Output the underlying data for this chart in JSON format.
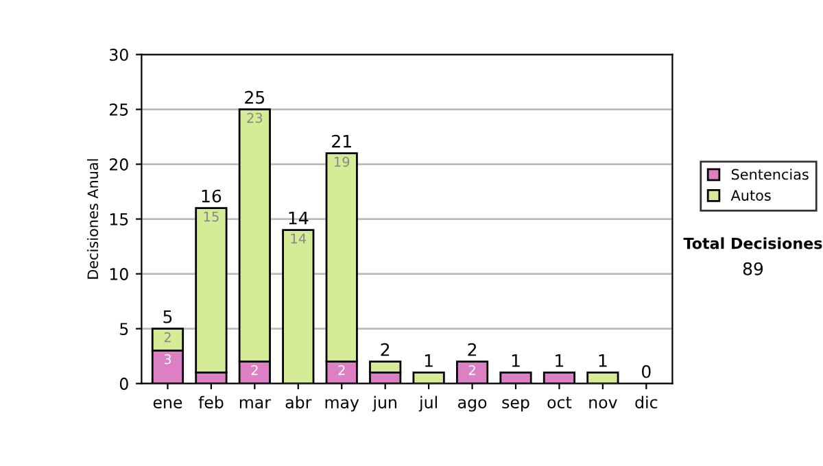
{
  "chart_data": {
    "type": "bar",
    "stacked": true,
    "ylabel": "Decisiones Anual",
    "categories": [
      "ene",
      "feb",
      "mar",
      "abr",
      "may",
      "jun",
      "jul",
      "ago",
      "sep",
      "oct",
      "nov",
      "dic"
    ],
    "series": [
      {
        "name": "Sentencias",
        "color": "#dd7fc4",
        "values": [
          3,
          1,
          2,
          0,
          2,
          1,
          0,
          2,
          1,
          1,
          0,
          0
        ],
        "value_labels": [
          "3",
          null,
          "2",
          null,
          "2",
          null,
          null,
          "2",
          null,
          null,
          null,
          null
        ]
      },
      {
        "name": "Autos",
        "color": "#d6eb96",
        "values": [
          2,
          15,
          23,
          14,
          19,
          1,
          1,
          0,
          0,
          0,
          1,
          0
        ],
        "value_labels": [
          "2",
          "15",
          "23",
          "14",
          "19",
          null,
          null,
          null,
          null,
          null,
          null,
          null
        ]
      }
    ],
    "totals": [
      "5",
      "16",
      "25",
      "14",
      "21",
      "2",
      "1",
      "2",
      "1",
      "1",
      "1",
      "0"
    ],
    "ylim": [
      0,
      30
    ],
    "yticks": [
      0,
      5,
      10,
      15,
      20,
      25,
      30
    ],
    "grid": "y",
    "legend": "right",
    "annotations": [
      "Total Decisiones",
      "89"
    ]
  }
}
